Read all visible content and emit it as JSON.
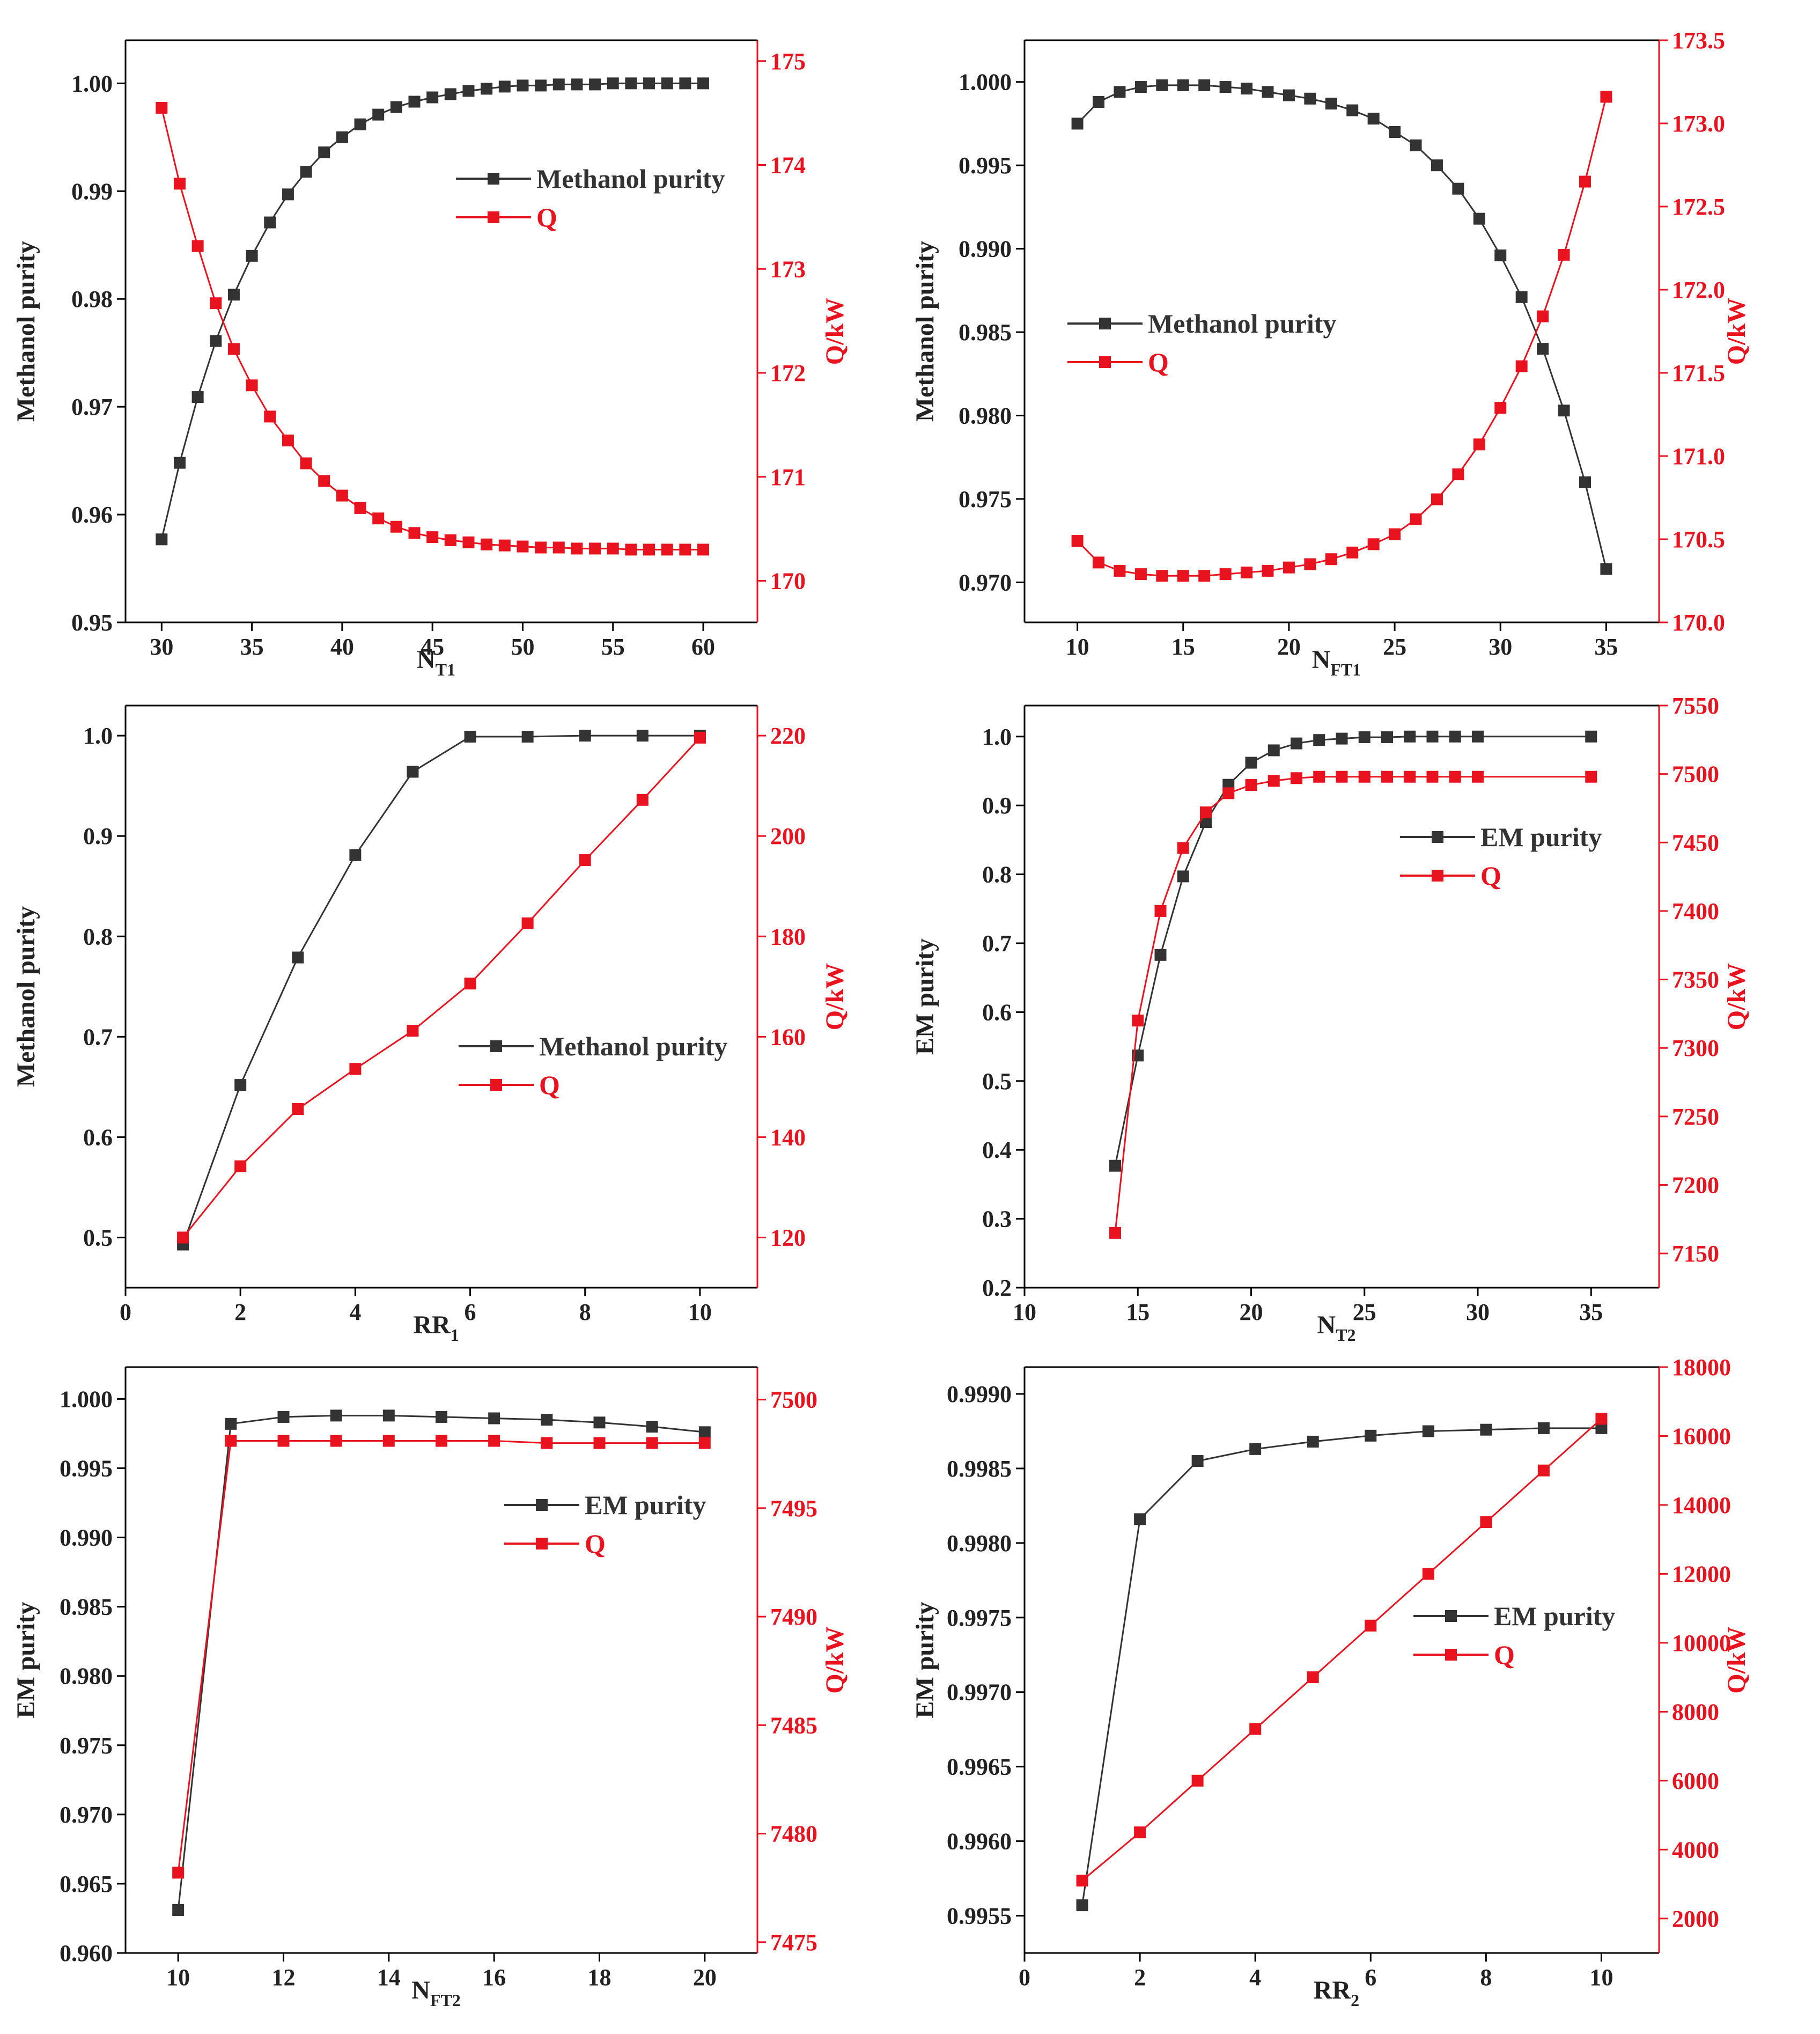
{
  "colors": {
    "purity": "#333333",
    "q": "#e8131f",
    "axis": "#000000"
  },
  "chart_data": [
    {
      "type": "line",
      "xlabel": "N",
      "xlabel_sub": "T1",
      "ylabel": "Methanol purity",
      "ylabel_right": "Q/kW",
      "xlim": [
        28,
        63
      ],
      "xticks": [
        "30",
        "35",
        "40",
        "45",
        "50",
        "55",
        "60"
      ],
      "xtick_values": [
        30,
        35,
        40,
        45,
        50,
        55,
        60
      ],
      "ylim": [
        0.95,
        1.004
      ],
      "yticks": [
        "0.95",
        "0.96",
        "0.97",
        "0.98",
        "0.99",
        "1.00"
      ],
      "ytick_values": [
        0.95,
        0.96,
        0.97,
        0.98,
        0.99,
        1.0
      ],
      "ylim_right": [
        169.6,
        175.2
      ],
      "yticks_right": [
        "170",
        "171",
        "172",
        "173",
        "174",
        "175"
      ],
      "ytick_values_right": [
        170,
        171,
        172,
        173,
        174,
        175
      ],
      "legend": [
        "Methanol purity",
        "Q"
      ],
      "series": [
        {
          "name": "Methanol purity",
          "axis": "left",
          "x": [
            30,
            31,
            32,
            33,
            34,
            35,
            36,
            37,
            38,
            39,
            40,
            41,
            42,
            43,
            44,
            45,
            46,
            47,
            48,
            49,
            50,
            51,
            52,
            53,
            54,
            55,
            56,
            57,
            58,
            59,
            60
          ],
          "values": [
            0.9577,
            0.9648,
            0.9709,
            0.9761,
            0.9804,
            0.984,
            0.9871,
            0.9897,
            0.9918,
            0.9936,
            0.995,
            0.9962,
            0.9971,
            0.9978,
            0.9983,
            0.9987,
            0.999,
            0.9993,
            0.9995,
            0.9997,
            0.9998,
            0.9998,
            0.9999,
            0.9999,
            0.9999,
            1.0,
            1.0,
            1.0,
            1.0,
            1.0,
            1.0
          ]
        },
        {
          "name": "Q",
          "axis": "right",
          "x": [
            30,
            31,
            32,
            33,
            34,
            35,
            36,
            37,
            38,
            39,
            40,
            41,
            42,
            43,
            44,
            45,
            46,
            47,
            48,
            49,
            50,
            51,
            52,
            53,
            54,
            55,
            56,
            57,
            58,
            59,
            60
          ],
          "values": [
            174.55,
            173.82,
            173.22,
            172.67,
            172.23,
            171.88,
            171.58,
            171.35,
            171.13,
            170.96,
            170.82,
            170.7,
            170.6,
            170.52,
            170.46,
            170.42,
            170.39,
            170.37,
            170.35,
            170.34,
            170.33,
            170.32,
            170.32,
            170.31,
            170.31,
            170.31,
            170.3,
            170.3,
            170.3,
            170.3,
            170.3
          ]
        }
      ]
    },
    {
      "type": "line",
      "xlabel": "N",
      "xlabel_sub": "FT1",
      "ylabel": "Methanol purity",
      "ylabel_right": "Q/kW",
      "xlim": [
        7.5,
        37.5
      ],
      "xticks": [
        "10",
        "15",
        "20",
        "25",
        "30",
        "35"
      ],
      "xtick_values": [
        10,
        15,
        20,
        25,
        30,
        35
      ],
      "ylim": [
        0.9676,
        1.0025
      ],
      "yticks": [
        "0.970",
        "0.975",
        "0.980",
        "0.985",
        "0.990",
        "0.995",
        "1.000"
      ],
      "ytick_values": [
        0.97,
        0.975,
        0.98,
        0.985,
        0.99,
        0.995,
        1.0
      ],
      "ylim_right": [
        170.0,
        173.5
      ],
      "yticks_right": [
        "170.0",
        "170.5",
        "171.0",
        "171.5",
        "172.0",
        "172.5",
        "173.0",
        "173.5"
      ],
      "ytick_values_right": [
        170.0,
        170.5,
        171.0,
        171.5,
        172.0,
        172.5,
        173.0,
        173.5
      ],
      "legend": [
        "Methanol purity",
        "Q"
      ],
      "series": [
        {
          "name": "Methanol purity",
          "axis": "left",
          "x": [
            10,
            11,
            12,
            13,
            14,
            15,
            16,
            17,
            18,
            19,
            20,
            21,
            22,
            23,
            24,
            25,
            26,
            27,
            28,
            29,
            30,
            31,
            32,
            33,
            34,
            35
          ],
          "values": [
            0.9975,
            0.9988,
            0.9994,
            0.9997,
            0.9998,
            0.9998,
            0.9998,
            0.9997,
            0.9996,
            0.9994,
            0.9992,
            0.999,
            0.9987,
            0.9983,
            0.9978,
            0.997,
            0.9962,
            0.995,
            0.9936,
            0.9918,
            0.9896,
            0.9871,
            0.984,
            0.9803,
            0.976,
            0.9708
          ]
        },
        {
          "name": "Q",
          "axis": "right",
          "x": [
            10,
            11,
            12,
            13,
            14,
            15,
            16,
            17,
            18,
            19,
            20,
            21,
            22,
            23,
            24,
            25,
            26,
            27,
            28,
            29,
            30,
            31,
            32,
            33,
            34,
            35
          ],
          "values": [
            170.49,
            170.36,
            170.31,
            170.29,
            170.28,
            170.28,
            170.28,
            170.29,
            170.3,
            170.31,
            170.33,
            170.35,
            170.38,
            170.42,
            170.47,
            170.53,
            170.62,
            170.74,
            170.89,
            171.07,
            171.29,
            171.54,
            171.84,
            172.21,
            172.65,
            173.16
          ]
        }
      ]
    },
    {
      "type": "line",
      "xlabel": "RR",
      "xlabel_sub": "1",
      "ylabel": "Methanol purity",
      "ylabel_right": "Q/kW",
      "xlim": [
        0,
        11
      ],
      "xticks": [
        "0",
        "2",
        "4",
        "6",
        "8",
        "10"
      ],
      "xtick_values": [
        0,
        2,
        4,
        6,
        8,
        10
      ],
      "ylim": [
        0.45,
        1.03
      ],
      "yticks": [
        "0.5",
        "0.6",
        "0.7",
        "0.8",
        "0.9",
        "1.0"
      ],
      "ytick_values": [
        0.5,
        0.6,
        0.7,
        0.8,
        0.9,
        1.0
      ],
      "ylim_right": [
        110,
        226
      ],
      "yticks_right": [
        "120",
        "140",
        "160",
        "180",
        "200",
        "220"
      ],
      "ytick_values_right": [
        120,
        140,
        160,
        180,
        200,
        220
      ],
      "legend": [
        "Methanol purity",
        "Q"
      ],
      "series": [
        {
          "name": "Methanol purity",
          "axis": "left",
          "x": [
            1,
            2,
            3,
            4,
            5,
            6,
            7,
            8,
            9,
            10
          ],
          "values": [
            0.493,
            0.652,
            0.779,
            0.881,
            0.964,
            0.999,
            0.999,
            1.0,
            1.0,
            1.0
          ]
        },
        {
          "name": "Q",
          "axis": "right",
          "x": [
            1,
            2,
            3,
            4,
            5,
            6,
            7,
            8,
            9,
            10
          ],
          "values": [
            120.0,
            134.2,
            145.6,
            153.6,
            161.2,
            170.6,
            182.6,
            195.2,
            207.2,
            219.6
          ]
        }
      ]
    },
    {
      "type": "line",
      "xlabel": "N",
      "xlabel_sub": "T2",
      "ylabel": "EM purity",
      "ylabel_right": "Q/kW",
      "xlim": [
        10,
        38
      ],
      "xticks": [
        "10",
        "15",
        "20",
        "25",
        "30",
        "35"
      ],
      "xtick_values": [
        10,
        15,
        20,
        25,
        30,
        35
      ],
      "ylim": [
        0.2,
        1.045
      ],
      "yticks": [
        "0.2",
        "0.3",
        "0.4",
        "0.5",
        "0.6",
        "0.7",
        "0.8",
        "0.9",
        "1.0"
      ],
      "ytick_values": [
        0.2,
        0.3,
        0.4,
        0.5,
        0.6,
        0.7,
        0.8,
        0.9,
        1.0
      ],
      "ylim_right": [
        7125,
        7550
      ],
      "yticks_right": [
        "7150",
        "7200",
        "7250",
        "7300",
        "7350",
        "7400",
        "7450",
        "7500",
        "7550"
      ],
      "ytick_values_right": [
        7150,
        7200,
        7250,
        7300,
        7350,
        7400,
        7450,
        7500,
        7550
      ],
      "legend": [
        "EM purity",
        "Q"
      ],
      "series": [
        {
          "name": "EM purity",
          "axis": "left",
          "x": [
            14,
            15,
            16,
            17,
            18,
            19,
            20,
            21,
            22,
            23,
            24,
            25,
            26,
            27,
            28,
            29,
            30,
            35
          ],
          "values": [
            0.377,
            0.537,
            0.683,
            0.797,
            0.876,
            0.93,
            0.962,
            0.98,
            0.99,
            0.995,
            0.997,
            0.999,
            0.999,
            1.0,
            1.0,
            1.0,
            1.0,
            1.0
          ]
        },
        {
          "name": "Q",
          "axis": "right",
          "x": [
            14,
            15,
            16,
            17,
            18,
            19,
            20,
            21,
            22,
            23,
            24,
            25,
            26,
            27,
            28,
            29,
            30,
            35
          ],
          "values": [
            7165,
            7320,
            7400,
            7446,
            7472,
            7486,
            7492,
            7495,
            7497,
            7498,
            7498,
            7498,
            7498,
            7498,
            7498,
            7498,
            7498,
            7498
          ]
        }
      ]
    },
    {
      "type": "line",
      "xlabel": "N",
      "xlabel_sub": "FT2",
      "ylabel": "EM purity",
      "ylabel_right": "Q/kW",
      "xlim": [
        9,
        21
      ],
      "xticks": [
        "10",
        "12",
        "14",
        "16",
        "18",
        "20"
      ],
      "xtick_values": [
        10,
        12,
        14,
        16,
        18,
        20
      ],
      "ylim": [
        0.96,
        1.0023
      ],
      "yticks": [
        "0.960",
        "0.965",
        "0.970",
        "0.975",
        "0.980",
        "0.985",
        "0.990",
        "0.995",
        "1.000"
      ],
      "ytick_values": [
        0.96,
        0.965,
        0.97,
        0.975,
        0.98,
        0.985,
        0.99,
        0.995,
        1.0
      ],
      "ylim_right": [
        7474.5,
        7501.5
      ],
      "yticks_right": [
        "7475",
        "7480",
        "7485",
        "7490",
        "7495",
        "7500"
      ],
      "ytick_values_right": [
        7475,
        7480,
        7485,
        7490,
        7495,
        7500
      ],
      "legend": [
        "EM purity",
        "Q"
      ],
      "series": [
        {
          "name": "EM purity",
          "axis": "left",
          "x": [
            10,
            11,
            12,
            13,
            14,
            15,
            16,
            17,
            18,
            19,
            20
          ],
          "values": [
            0.9631,
            0.9982,
            0.9987,
            0.9988,
            0.9988,
            0.9987,
            0.9986,
            0.9985,
            0.9983,
            0.998,
            0.9976
          ]
        },
        {
          "name": "Q",
          "axis": "right",
          "x": [
            10,
            11,
            12,
            13,
            14,
            15,
            16,
            17,
            18,
            19,
            20
          ],
          "values": [
            7478.2,
            7498.1,
            7498.1,
            7498.1,
            7498.1,
            7498.1,
            7498.1,
            7498.0,
            7498.0,
            7498.0,
            7498.0
          ]
        }
      ]
    },
    {
      "type": "line",
      "xlabel": "RR",
      "xlabel_sub": "2",
      "ylabel": "EM purity",
      "ylabel_right": "Q/kW",
      "xlim": [
        0,
        11
      ],
      "xticks": [
        "0",
        "2",
        "4",
        "6",
        "8",
        "10"
      ],
      "xtick_values": [
        0,
        2,
        4,
        6,
        8,
        10
      ],
      "ylim": [
        0.99525,
        0.99918
      ],
      "yticks": [
        "0.9955",
        "0.9960",
        "0.9965",
        "0.9970",
        "0.9975",
        "0.9980",
        "0.9985",
        "0.9990"
      ],
      "ytick_values": [
        0.9955,
        0.996,
        0.9965,
        0.997,
        0.9975,
        0.998,
        0.9985,
        0.999
      ],
      "ylim_right": [
        1000,
        18000
      ],
      "yticks_right": [
        "2000",
        "4000",
        "6000",
        "8000",
        "10000",
        "12000",
        "14000",
        "16000",
        "18000"
      ],
      "ytick_values_right": [
        2000,
        4000,
        6000,
        8000,
        10000,
        12000,
        14000,
        16000,
        18000
      ],
      "legend": [
        "EM purity",
        "Q"
      ],
      "series": [
        {
          "name": "EM purity",
          "axis": "left",
          "x": [
            1,
            2,
            3,
            4,
            5,
            6,
            7,
            8,
            9,
            10
          ],
          "values": [
            0.99557,
            0.99816,
            0.99855,
            0.99863,
            0.99868,
            0.99872,
            0.99875,
            0.99876,
            0.99877,
            0.99877
          ]
        },
        {
          "name": "Q",
          "axis": "right",
          "x": [
            1,
            2,
            3,
            4,
            5,
            6,
            7,
            8,
            9,
            10
          ],
          "values": [
            3100,
            4500,
            6000,
            7500,
            9000,
            10500,
            12000,
            13500,
            15000,
            16500
          ]
        }
      ]
    }
  ]
}
